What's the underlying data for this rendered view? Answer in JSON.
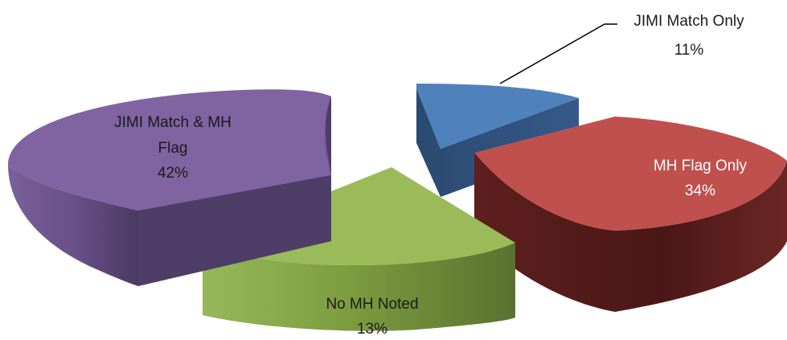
{
  "chart_data": {
    "type": "pie",
    "title": "",
    "three_d": true,
    "exploded": true,
    "slices": [
      {
        "label_lines": [
          "JIMI Match Only"
        ],
        "percent_label": "11%",
        "value": 11,
        "color": "#4f81bd"
      },
      {
        "label_lines": [
          "MH Flag Only"
        ],
        "percent_label": "34%",
        "value": 34,
        "color": "#c0504d"
      },
      {
        "label_lines": [
          "No MH Noted"
        ],
        "percent_label": "13%",
        "value": 13,
        "color": "#9bbb59"
      },
      {
        "label_lines": [
          "JIMI Match & MH",
          "Flag"
        ],
        "percent_label": "42%",
        "value": 42,
        "color": "#8064a2"
      }
    ]
  }
}
